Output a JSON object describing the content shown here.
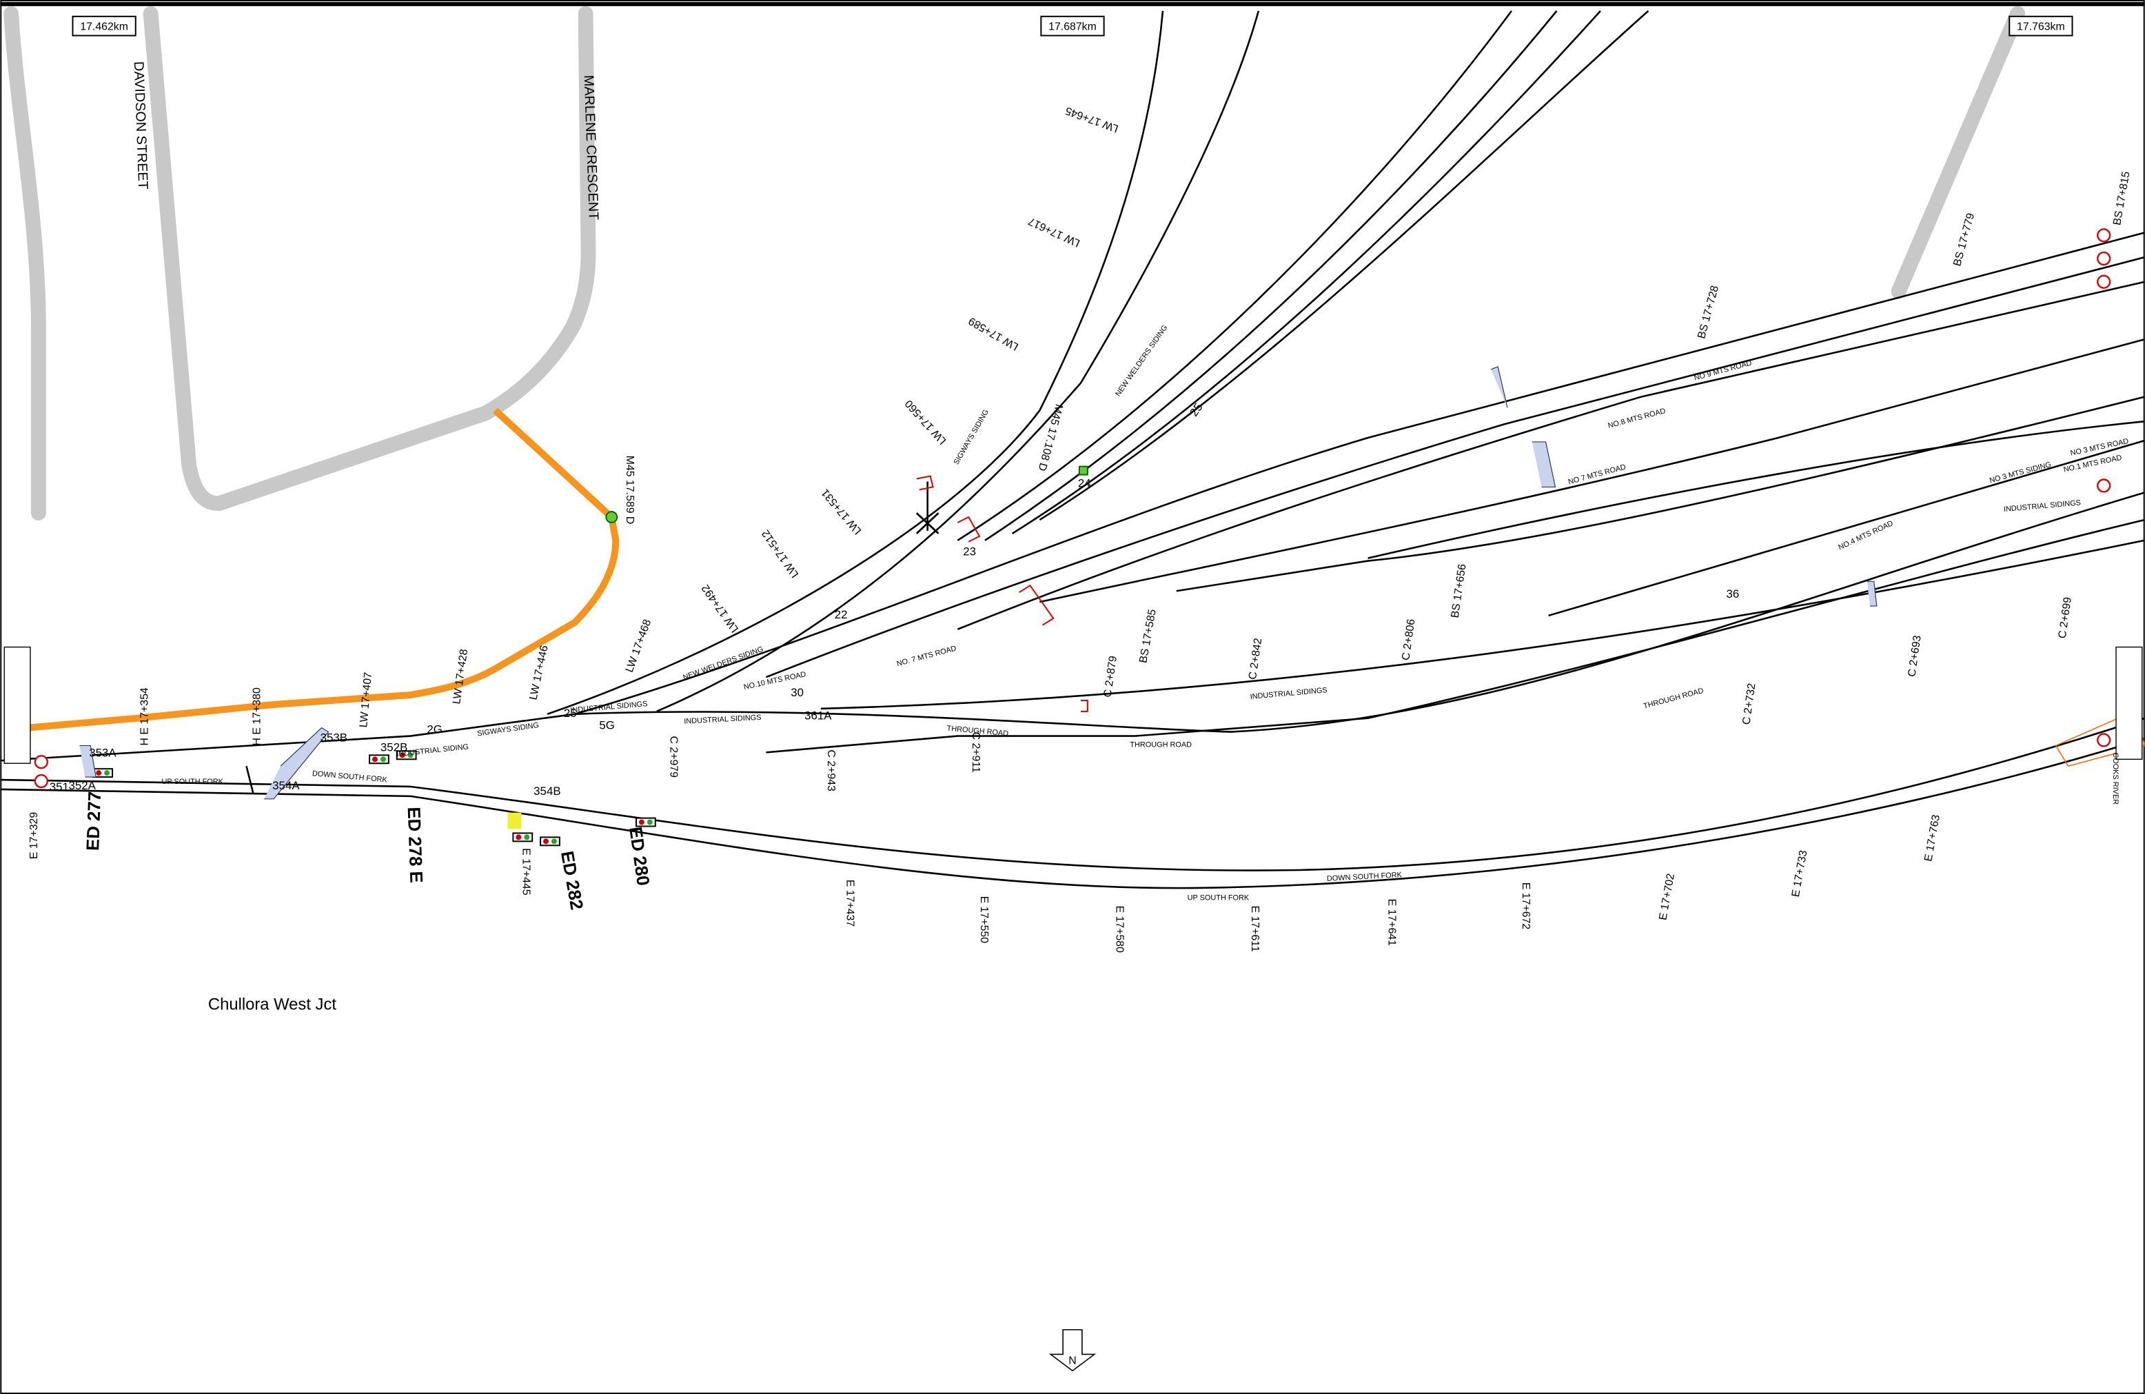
{
  "km_markers": [
    "17.462km",
    "17.687km",
    "17.763km"
  ],
  "streets": [
    "DAVIDSON STREET",
    "MARLENE CRESCENT"
  ],
  "mast_labels": [
    "M45 17.589 D",
    "M45 17.108 D"
  ],
  "signal_ids": [
    "ED 277",
    "ED 278 E",
    "ED 282",
    "ED 280"
  ],
  "point_ids": [
    "353A",
    "352A",
    "351",
    "353B",
    "352B",
    "354A",
    "354B",
    "2G",
    "5G",
    "25",
    "30",
    "361A",
    "22",
    "23",
    "24",
    "25",
    "36"
  ],
  "track_names": [
    "UP SOUTH FORK",
    "DOWN SOUTH FORK",
    "DOWN SOUTH FORK",
    "UP SOUTH FORK",
    "INDUSTRIAL SIDING",
    "SIGWAYS SIDING",
    "INDUSTRIAL SIDINGS",
    "INDUSTRIAL SIDINGS",
    "NEW WELDERS SIDING",
    "NO.10 MTS ROAD",
    "NO. 7 MTS ROAD",
    "THROUGH ROAD",
    "THROUGH ROAD",
    "INDUSTRIAL SIDINGS",
    "THROUGH ROAD",
    "SIGWAYS SIDING",
    "NEW WELDERS SIDING",
    "NO 7 MTS ROAD",
    "NO.8 MTS ROAD",
    "NO 9 MTS ROAD",
    "NO 3 MTS SIDING",
    "NO.1 MTS ROAD",
    "NO 3 MTS ROAD",
    "INDUSTRIAL SIDINGS",
    "NO.4 MTS ROAD",
    "COOKS RIVER"
  ],
  "chainages": [
    "E 17+329",
    "H E 17+354",
    "H E 17+380",
    "LW 17+407",
    "LW 17+428",
    "LW 17+446",
    "LW 17+468",
    "LW 17+492",
    "LW 17+512",
    "LW 17+531",
    "LW 17+560",
    "LW 17+589",
    "LW 17+617",
    "LW 17+645",
    "BS 17+585",
    "C 2+879",
    "C 2+842",
    "C 2+806",
    "BS 17+656",
    "BS 17+728",
    "BS 17+779",
    "BS 17+815",
    "C 2+693",
    "C 2+699",
    "C 2+732",
    "C 2+911",
    "C 2+943",
    "C 2+979",
    "E 17+445",
    "E 17+437",
    "E 17+550",
    "E 17+580",
    "E 17+611",
    "E 17+641",
    "E 17+672",
    "E 17+702",
    "E 17+733",
    "E 17+763"
  ],
  "location": "Chullora West Jct",
  "north": "N"
}
